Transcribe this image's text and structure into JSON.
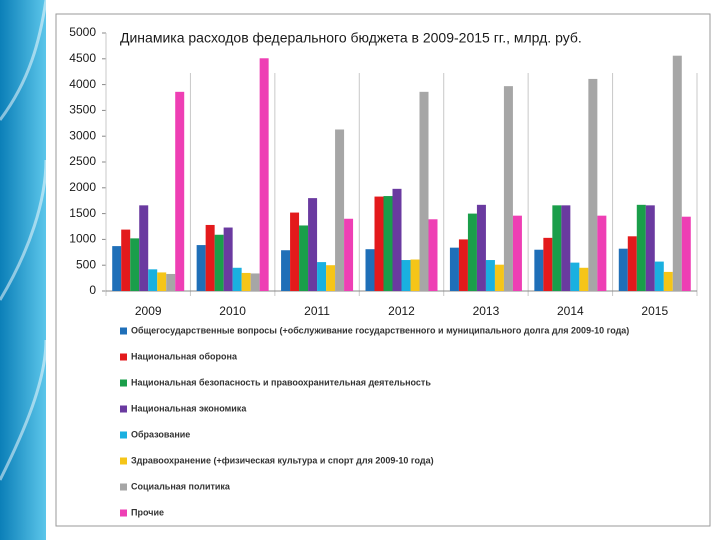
{
  "chart_data": {
    "type": "bar",
    "title": "Динамика расходов федерального бюджета в 2009-2015 гг., млрд. руб.",
    "categories": [
      "2009",
      "2010",
      "2011",
      "2012",
      "2013",
      "2014",
      "2015"
    ],
    "series": [
      {
        "name": "Общегосударственные вопросы (+обслуживание государственного и муниципального долга для 2009-10 года)",
        "color": "#1f6fb8",
        "values": [
          870,
          890,
          790,
          810,
          840,
          800,
          820
        ]
      },
      {
        "name": "Национальная оборона",
        "color": "#e31a1c",
        "values": [
          1190,
          1280,
          1520,
          1830,
          1000,
          1030,
          1060
        ]
      },
      {
        "name": "Национальная безопасность и правоохранительная деятельность",
        "color": "#1a9e4a",
        "values": [
          1020,
          1090,
          1270,
          1840,
          1500,
          1660,
          1670
        ]
      },
      {
        "name": "Национальная экономика",
        "color": "#6a3aa0",
        "values": [
          1660,
          1230,
          1800,
          1980,
          1670,
          1660,
          1660
        ]
      },
      {
        "name": "Образование",
        "color": "#1ab0e0",
        "values": [
          420,
          450,
          560,
          600,
          600,
          550,
          570
        ]
      },
      {
        "name": "Здравоохранение (+физическая культура и спорт для 2009-10 года)",
        "color": "#f5c518",
        "values": [
          360,
          350,
          500,
          610,
          510,
          450,
          370
        ]
      },
      {
        "name": "Социальная политика",
        "color": "#a6a6a6",
        "values": [
          330,
          340,
          3130,
          3860,
          3970,
          4110,
          4560
        ]
      },
      {
        "name": "Прочие",
        "color": "#ee3fb4",
        "values": [
          3860,
          4510,
          1400,
          1390,
          1460,
          1460,
          1440
        ]
      }
    ],
    "ylim": [
      0,
      5000
    ],
    "yticks": [
      0,
      500,
      1000,
      1500,
      2000,
      2500,
      3000,
      3500,
      4000,
      4500,
      5000
    ],
    "grid": false,
    "legend": "bottom"
  }
}
